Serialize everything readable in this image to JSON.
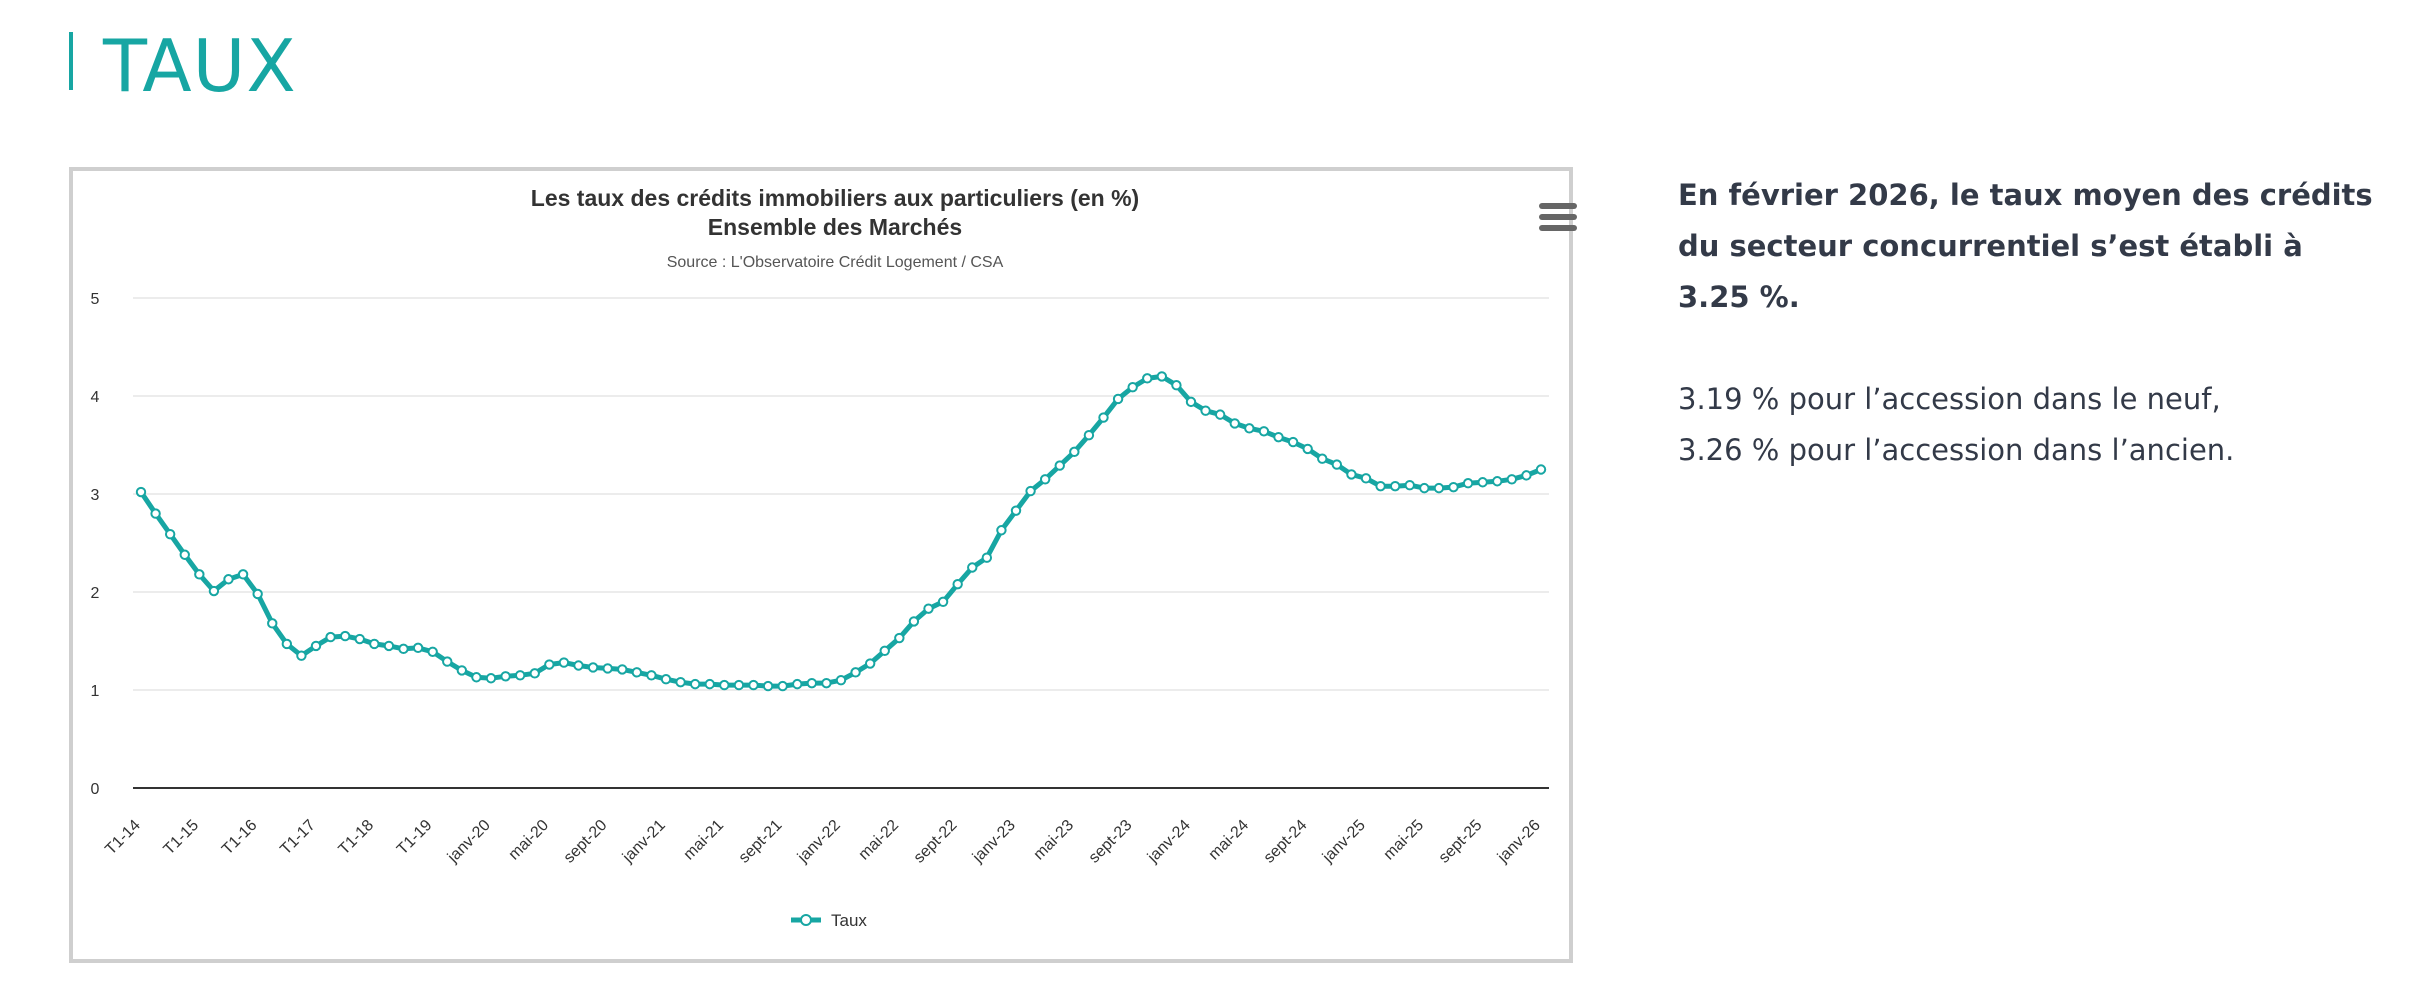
{
  "page": {
    "title": "TAUX"
  },
  "side": {
    "lead": "En février 2026, le taux moyen des crédits du secteur concurrentiel s’est établi à 3.25 %.",
    "line1": "3.19 % pour l’accession dans le neuf,",
    "line2": "3.26 % pour l’accession dans l’ancien."
  },
  "colors": {
    "accent": "#17a6a3",
    "text": "#333a48",
    "grid": "#e6e6e6",
    "axis": "#333333"
  },
  "menu": {
    "icon": "hamburger-menu-icon"
  },
  "chart_data": {
    "type": "line",
    "title": "Les taux des crédits immobiliers aux particuliers (en %)",
    "subtitle": "Ensemble des Marchés",
    "source": "Source : L'Observatoire Crédit Logement / CSA",
    "xlabel": "",
    "ylabel": "",
    "ylim": [
      0,
      5
    ],
    "yticks": [
      "0",
      "1",
      "2",
      "3",
      "4",
      "5"
    ],
    "grid": true,
    "legend": "bottom-center",
    "series": [
      {
        "name": "Taux",
        "values": [
          3.02,
          2.8,
          2.59,
          2.38,
          2.18,
          2.01,
          2.13,
          2.18,
          1.98,
          1.68,
          1.47,
          1.35,
          1.45,
          1.54,
          1.55,
          1.52,
          1.47,
          1.45,
          1.42,
          1.43,
          1.39,
          1.29,
          1.2,
          1.13,
          1.12,
          1.14,
          1.15,
          1.17,
          1.26,
          1.28,
          1.25,
          1.23,
          1.22,
          1.21,
          1.18,
          1.15,
          1.11,
          1.08,
          1.06,
          1.06,
          1.05,
          1.05,
          1.05,
          1.04,
          1.04,
          1.06,
          1.07,
          1.07,
          1.1,
          1.18,
          1.27,
          1.4,
          1.53,
          1.7,
          1.83,
          1.9,
          2.08,
          2.25,
          2.35,
          2.63,
          2.83,
          3.03,
          3.15,
          3.29,
          3.43,
          3.6,
          3.78,
          3.97,
          4.09,
          4.18,
          4.2,
          4.11,
          3.94,
          3.85,
          3.81,
          3.72,
          3.67,
          3.64,
          3.58,
          3.53,
          3.46,
          3.36,
          3.3,
          3.2,
          3.16,
          3.08,
          3.08,
          3.09,
          3.06,
          3.06,
          3.07,
          3.11,
          3.12,
          3.13,
          3.15,
          3.19,
          3.25
        ]
      }
    ],
    "x_tick_labels": [
      {
        "i": 0,
        "label": "T1-14"
      },
      {
        "i": 4,
        "label": "T1-15"
      },
      {
        "i": 8,
        "label": "T1-16"
      },
      {
        "i": 12,
        "label": "T1-17"
      },
      {
        "i": 16,
        "label": "T1-18"
      },
      {
        "i": 20,
        "label": "T1-19"
      },
      {
        "i": 24,
        "label": "janv-20"
      },
      {
        "i": 28,
        "label": "mai-20"
      },
      {
        "i": 32,
        "label": "sept-20"
      },
      {
        "i": 36,
        "label": "janv-21"
      },
      {
        "i": 40,
        "label": "mai-21"
      },
      {
        "i": 44,
        "label": "sept-21"
      },
      {
        "i": 48,
        "label": "janv-22"
      },
      {
        "i": 52,
        "label": "mai-22"
      },
      {
        "i": 56,
        "label": "sept-22"
      },
      {
        "i": 60,
        "label": "janv-23"
      },
      {
        "i": 64,
        "label": "mai-23"
      },
      {
        "i": 68,
        "label": "sept-23"
      },
      {
        "i": 72,
        "label": "janv-24"
      },
      {
        "i": 76,
        "label": "mai-24"
      },
      {
        "i": 80,
        "label": "sept-24"
      },
      {
        "i": 84,
        "label": "janv-25"
      },
      {
        "i": 88,
        "label": "mai-25"
      },
      {
        "i": 92,
        "label": "sept-25"
      },
      {
        "i": 96,
        "label": "janv-26"
      }
    ]
  }
}
